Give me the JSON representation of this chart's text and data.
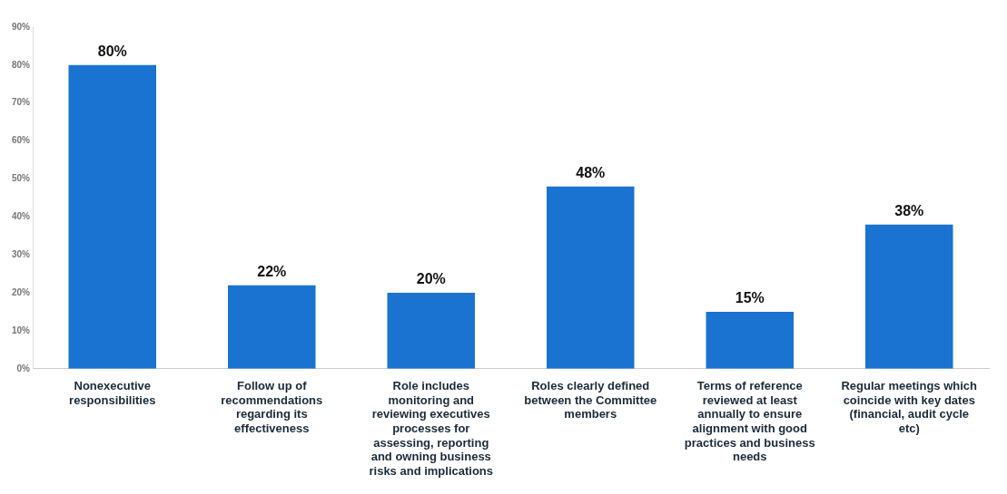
{
  "chart_data": {
    "type": "bar",
    "categories": [
      "Nonexecutive responsibilities",
      "Follow up of recommendations regarding its effectiveness",
      "Role includes monitoring and reviewing executives processes for assessing, reporting and owning business risks and implications",
      "Roles clearly defined between the Committee members",
      "Terms of reference reviewed at least annually to ensure alignment with good practices and business needs",
      "Regular meetings which coincide with key dates (financial, audit cycle etc)"
    ],
    "values": [
      80,
      22,
      20,
      48,
      15,
      38
    ],
    "value_labels": [
      "80%",
      "22%",
      "20%",
      "48%",
      "15%",
      "38%"
    ],
    "color": "#1a73d0",
    "ylim": [
      0,
      90
    ],
    "yticks": [
      {
        "value": 0,
        "label": "0%"
      },
      {
        "value": 10,
        "label": "10%"
      },
      {
        "value": 20,
        "label": "20%"
      },
      {
        "value": 30,
        "label": "30%"
      },
      {
        "value": 40,
        "label": "40%"
      },
      {
        "value": 50,
        "label": "50%"
      },
      {
        "value": 60,
        "label": "60%"
      },
      {
        "value": 70,
        "label": "70%"
      },
      {
        "value": 80,
        "label": "80%"
      },
      {
        "value": 90,
        "label": "90%"
      }
    ],
    "grid": false,
    "legend": false
  }
}
